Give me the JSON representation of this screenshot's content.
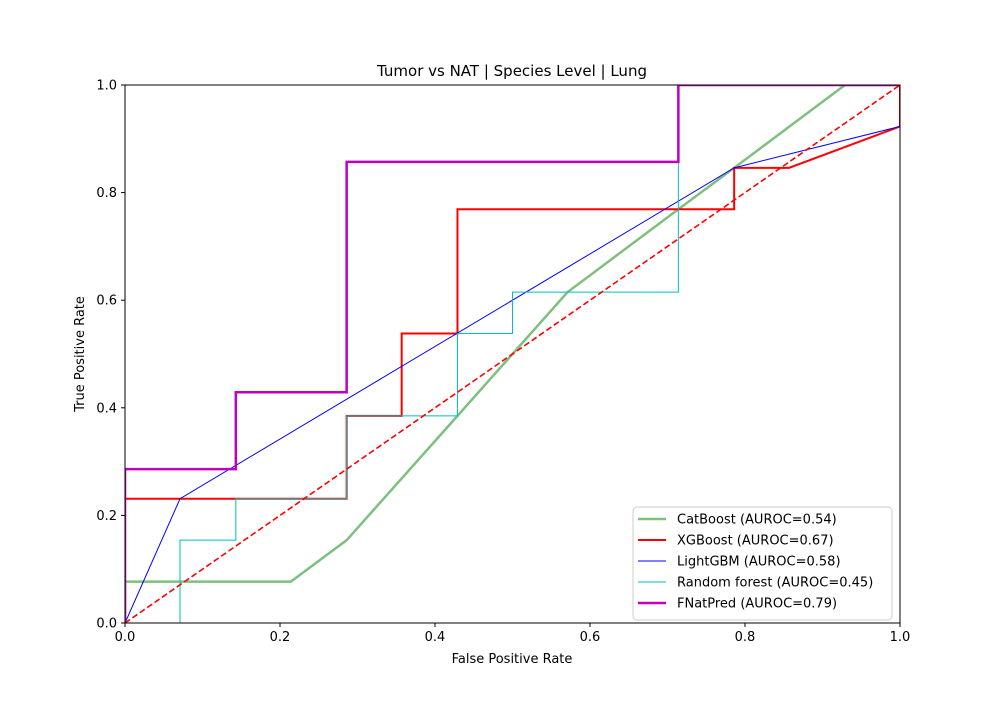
{
  "chart_data": {
    "type": "line",
    "title": "Tumor vs NAT | Species Level | Lung",
    "xlabel": "False Positive Rate",
    "ylabel": "True Positive Rate",
    "xlim": [
      0,
      1
    ],
    "ylim": [
      0,
      1
    ],
    "x_ticks": [
      "0.0",
      "0.2",
      "0.4",
      "0.6",
      "0.8",
      "1.0"
    ],
    "y_ticks": [
      "0.0",
      "0.2",
      "0.4",
      "0.6",
      "0.8",
      "1.0"
    ],
    "grid": false,
    "legend_position": "lower right",
    "diagonal": {
      "x": [
        0,
        1
      ],
      "y": [
        0,
        1
      ],
      "color": "#ff0000",
      "style": "dashed"
    },
    "series": [
      {
        "name": "CatBoost (AUROC=0.54)",
        "color": "#7fbf7f",
        "line_width": 2.5,
        "x": [
          0,
          0,
          0.214,
          0.286,
          0.429,
          0.5,
          0.571,
          0.714,
          0.786,
          0.929,
          1.0
        ],
        "y": [
          0,
          0.077,
          0.077,
          0.154,
          0.385,
          0.5,
          0.615,
          0.769,
          0.846,
          1.0,
          1.0
        ]
      },
      {
        "name": "XGBoost (AUROC=0.67)",
        "color": "#ff0000",
        "line_width": 2,
        "x": [
          0,
          0,
          0.286,
          0.286,
          0.357,
          0.357,
          0.429,
          0.429,
          0.786,
          0.786,
          0.857,
          1.0,
          1.0
        ],
        "y": [
          0,
          0.231,
          0.231,
          0.385,
          0.385,
          0.538,
          0.538,
          0.769,
          0.769,
          0.846,
          0.846,
          0.923,
          1.0
        ]
      },
      {
        "name": "LightGBM (AUROC=0.58)",
        "color": "#0000ff",
        "line_width": 1,
        "x": [
          0,
          0.071,
          0.786,
          1.0,
          1.0
        ],
        "y": [
          0,
          0.231,
          0.846,
          0.923,
          1.0
        ]
      },
      {
        "name": "Random forest (AUROC=0.45)",
        "color": "#00bfbf",
        "line_width": 1,
        "x": [
          0,
          0.071,
          0.071,
          0.143,
          0.143,
          0.286,
          0.286,
          0.429,
          0.429,
          0.5,
          0.5,
          0.714,
          0.714,
          1.0
        ],
        "y": [
          0,
          0,
          0.154,
          0.154,
          0.231,
          0.231,
          0.385,
          0.385,
          0.538,
          0.538,
          0.615,
          0.615,
          1.0,
          1.0
        ]
      },
      {
        "name": "FNatPred (AUROC=0.79)",
        "color": "#bf00bf",
        "line_width": 2.5,
        "x": [
          0,
          0,
          0.143,
          0.143,
          0.286,
          0.286,
          0.714,
          0.714,
          1.0,
          1.0
        ],
        "y": [
          0,
          0.286,
          0.286,
          0.429,
          0.429,
          0.857,
          0.857,
          1.0,
          1.0,
          1.0
        ]
      }
    ]
  }
}
